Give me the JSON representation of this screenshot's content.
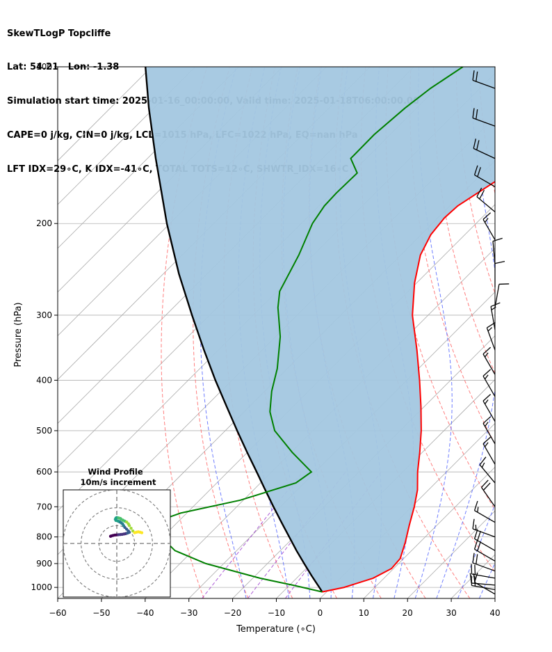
{
  "titles": {
    "line1": "SkewTLogP Topcliffe",
    "line2": "Lat: 54.21   Lon: -1.38",
    "line3": "Simulation start time: 2025-01-16_00:00:00, Valid time: 2025-01-18T06:00:00.00",
    "line4": "CAPE=0 j/kg, CIN=0 j/kg, LCL=1015 hPa, LFC=1022 hPa, EQ=nan hPa",
    "line5": "LFT IDX=29∘C, K IDX=-41∘C, TOTAL TOTS=12∘C, SHWTR_IDX=16∘C"
  },
  "colors": {
    "temperature": "#ff0000",
    "dewpoint": "#008000",
    "parcel": "#000000",
    "shade": "#a3c7e0",
    "dry_adiabat": "#ff6666",
    "moist_adiabat": "#5566ff",
    "mixing_ratio": "#9933cc",
    "isotherm": "#aaaaaa"
  },
  "chart_data": [
    {
      "type": "line",
      "title": "",
      "xlabel": "Temperature (∘C)",
      "ylabel": "Pressure (hPa)",
      "xlim": [
        -60,
        40
      ],
      "ylim": [
        1050,
        100
      ],
      "y_scale": "log",
      "skew": true,
      "x_ticks": [
        -60,
        -50,
        -40,
        -30,
        -20,
        -10,
        0,
        10,
        20,
        30,
        40
      ],
      "x_tick_labels": [
        "−60",
        "−50",
        "−40",
        "−30",
        "−20",
        "−10",
        "0",
        "10",
        "20",
        "30",
        "40"
      ],
      "y_ticks": [
        100,
        200,
        300,
        400,
        500,
        600,
        700,
        800,
        900,
        1000
      ],
      "y_tick_labels": [
        "100",
        "200",
        "300",
        "400",
        "500",
        "600",
        "700",
        "800",
        "900",
        "1000"
      ],
      "grid": true,
      "series": [
        {
          "role": "temperature",
          "pressure": [
            1020,
            1000,
            960,
            920,
            880,
            820,
            760,
            700,
            650,
            600,
            550,
            500,
            450,
            400,
            350,
            300,
            260,
            230,
            210,
            195,
            185,
            165,
            148,
            130,
            118,
            108,
            100
          ],
          "value": [
            -1,
            3,
            7.5,
            9.5,
            9.2,
            6.7,
            3.7,
            0.6,
            -2.5,
            -6.6,
            -10.6,
            -15.2,
            -20.7,
            -27.1,
            -34.6,
            -43.6,
            -50.5,
            -55.5,
            -57.8,
            -58.5,
            -58.2,
            -55,
            -53.2,
            -53.6,
            -54.6,
            -56,
            -57.2
          ]
        },
        {
          "role": "dewpoint",
          "pressure": [
            1020,
            990,
            960,
            900,
            850,
            800,
            770,
            740,
            720,
            680,
            630,
            600,
            550,
            500,
            460,
            420,
            380,
            330,
            290,
            270,
            230,
            200,
            185,
            175,
            160,
            150,
            135,
            120,
            110,
            100
          ],
          "value": [
            -1,
            -9.3,
            -18.4,
            -34.1,
            -44.1,
            -50.4,
            -53.2,
            -54,
            -51.4,
            -40.7,
            -31.9,
            -30.9,
            -39.8,
            -48.7,
            -54.1,
            -58.4,
            -62.3,
            -68.9,
            -76.1,
            -79.4,
            -83.3,
            -87.4,
            -88.7,
            -88.9,
            -88.7,
            -93.5,
            -93.6,
            -92.6,
            -91.3,
            -88.8
          ]
        },
        {
          "role": "parcel",
          "pressure": [
            1020,
            1000,
            950,
            900,
            850,
            800,
            750,
            700,
            650,
            600,
            550,
            500,
            450,
            400,
            350,
            300,
            250,
            200,
            150,
            120,
            100
          ],
          "value": [
            -1,
            -2.7,
            -7.1,
            -11.6,
            -16.3,
            -21.1,
            -26.2,
            -31.6,
            -37.3,
            -43.4,
            -50.1,
            -57.3,
            -65.1,
            -73.8,
            -83.3,
            -94,
            -106.4,
            -120.7,
            -138.1,
            -151.2,
            -161.4
          ]
        }
      ],
      "lines": {
        "isotherms_start": -160,
        "isotherms_end": 40,
        "isotherms_step": 10,
        "dry_adiabats_theta_c": [
          -30,
          -20,
          -10,
          0,
          10,
          20,
          30,
          40,
          50,
          60,
          70,
          80,
          90,
          100,
          110,
          120
        ],
        "moist_adiabats_t0_c": [
          -20,
          -10,
          -5,
          0,
          5,
          10,
          15,
          20,
          25,
          30,
          35
        ],
        "mixing_ratio_g_per_kg": [
          0.4,
          1,
          2
        ]
      },
      "wind_barbs": {
        "position": "right",
        "pressure": [
          110,
          130,
          150,
          170,
          190,
          215,
          240,
          265,
          290,
          320,
          350,
          390,
          430,
          480,
          530,
          580,
          630,
          700,
          750,
          800,
          850,
          890,
          930,
          960,
          990,
          1010,
          1030
        ],
        "direction_deg": [
          290,
          290,
          295,
          300,
          310,
          330,
          355,
          360,
          10,
          350,
          340,
          330,
          330,
          330,
          330,
          330,
          320,
          325,
          300,
          290,
          300,
          300,
          290,
          280,
          275,
          280,
          300
        ],
        "speed_kt": [
          20,
          20,
          20,
          20,
          20,
          15,
          10,
          10,
          10,
          15,
          15,
          15,
          15,
          15,
          15,
          15,
          15,
          20,
          15,
          15,
          20,
          20,
          20,
          20,
          20,
          20,
          10
        ]
      }
    },
    {
      "type": "scatter",
      "title": "Wind Profile",
      "subtitle": "10m/s increment",
      "grid": false,
      "legend": "none",
      "rings_ms": [
        10,
        20,
        30
      ],
      "xlim": [
        -30,
        30
      ],
      "ylim": [
        -30,
        30
      ],
      "points_u_ms": [
        -3.5,
        -3,
        -2,
        -1,
        0,
        1,
        2,
        3,
        4,
        5,
        6,
        7,
        6.5,
        5.5,
        4.5,
        3.8,
        3.2,
        2.5,
        1.8,
        1.2,
        0.5,
        -0.5,
        -0.8,
        -0.5,
        0,
        1,
        2,
        2.5,
        3.5,
        4.5,
        5.5,
        6.5,
        7,
        8,
        9,
        10,
        11,
        12,
        13,
        14
      ],
      "points_v_ms": [
        4,
        4.2,
        4.5,
        4.7,
        4.8,
        4.9,
        5,
        5.1,
        5.3,
        5.5,
        5.8,
        6.2,
        7,
        8,
        9,
        10,
        11,
        11.5,
        12,
        12.3,
        12.6,
        12.9,
        13.5,
        14.2,
        14.5,
        14.3,
        14,
        13.5,
        13,
        12.5,
        12,
        11,
        10,
        8.5,
        7,
        6,
        6.3,
        6.5,
        6.3,
        6
      ],
      "color_scale": "viridis"
    }
  ]
}
